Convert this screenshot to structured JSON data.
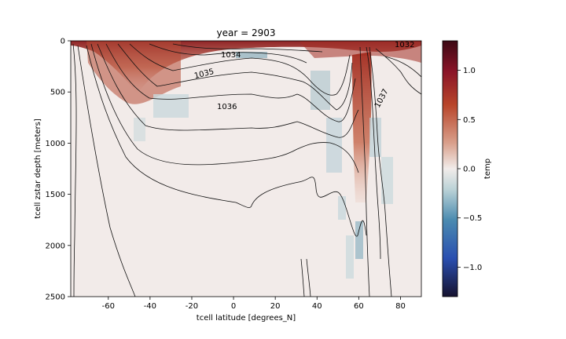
{
  "chart_data": {
    "type": "heatmap",
    "title": "year = 2903",
    "xlabel": "tcell latitude [degrees_N]",
    "ylabel": "tcell zstar depth [meters]",
    "xlim": [
      -78,
      90
    ],
    "ylim": [
      2500,
      0
    ],
    "x_ticks": [
      "-60",
      "-40",
      "-20",
      "0",
      "20",
      "40",
      "60",
      "80"
    ],
    "x_tick_values": [
      -60,
      -40,
      -20,
      0,
      20,
      40,
      60,
      80
    ],
    "y_ticks": [
      "0",
      "500",
      "1000",
      "1500",
      "2000",
      "2500"
    ],
    "y_tick_values": [
      0,
      500,
      1000,
      1500,
      2000,
      2500
    ],
    "colorbar": {
      "label": "temp",
      "range": [
        -1.3,
        1.3
      ],
      "ticks": [
        "1.0",
        "0.5",
        "0.0",
        "−0.5",
        "−1.0"
      ],
      "tick_values": [
        1.0,
        0.5,
        0.0,
        -0.5,
        -1.0
      ],
      "colormap": "balance",
      "colors": [
        "#16122f",
        "#2a4fb0",
        "#4b8bb0",
        "#bcd3d7",
        "#f1ecea",
        "#d9a08c",
        "#b8452a",
        "#8a1428",
        "#3c0914"
      ]
    },
    "grid": false,
    "contour_levels_labeled": [
      "1034",
      "1035",
      "1036",
      "1037",
      "1032"
    ],
    "contour_color": "#000000"
  }
}
